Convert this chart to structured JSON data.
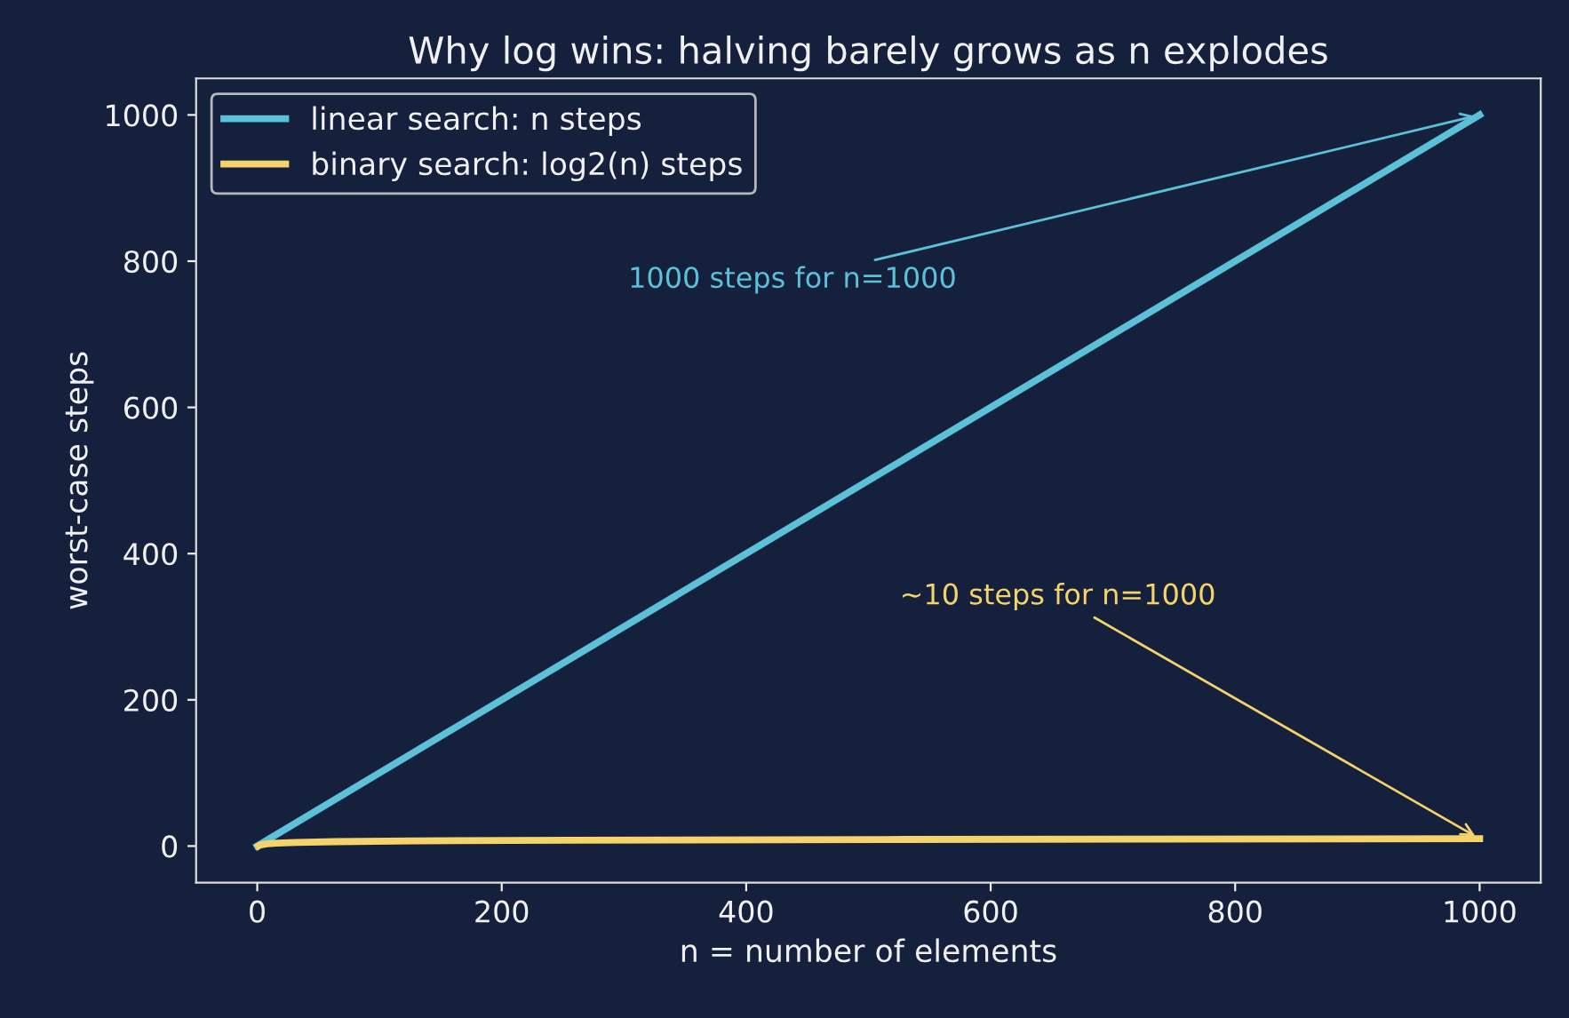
{
  "chart_data": {
    "type": "line",
    "title": "Why log wins: halving barely grows as n explodes",
    "xlabel": "n = number of elements",
    "ylabel": "worst-case steps",
    "series": [
      {
        "name": "linear search: n steps",
        "color": "#5bc0d8",
        "x": [
          0,
          1000
        ],
        "values": [
          0,
          1000
        ]
      },
      {
        "name": "binary search: log2(n) steps",
        "color": "#f5d36b",
        "x": [
          1,
          2,
          4,
          8,
          16,
          32,
          64,
          128,
          256,
          512,
          1000
        ],
        "values": [
          0,
          1,
          2,
          3,
          4,
          5,
          6,
          7,
          8,
          9,
          10
        ]
      }
    ],
    "annotations": [
      {
        "text": "1000 steps for n=1000",
        "x": 1000,
        "y": 1000
      },
      {
        "text": "~10 steps for n=1000",
        "x": 1000,
        "y": 10
      }
    ],
    "xlim": [
      -50,
      1050
    ],
    "ylim": [
      -50,
      1050
    ],
    "xticks": [
      0,
      200,
      400,
      600,
      800,
      1000
    ],
    "yticks": [
      0,
      200,
      400,
      600,
      800,
      1000
    ],
    "grid": false,
    "legend": "top left",
    "marker": "none",
    "line_style": "solid"
  }
}
